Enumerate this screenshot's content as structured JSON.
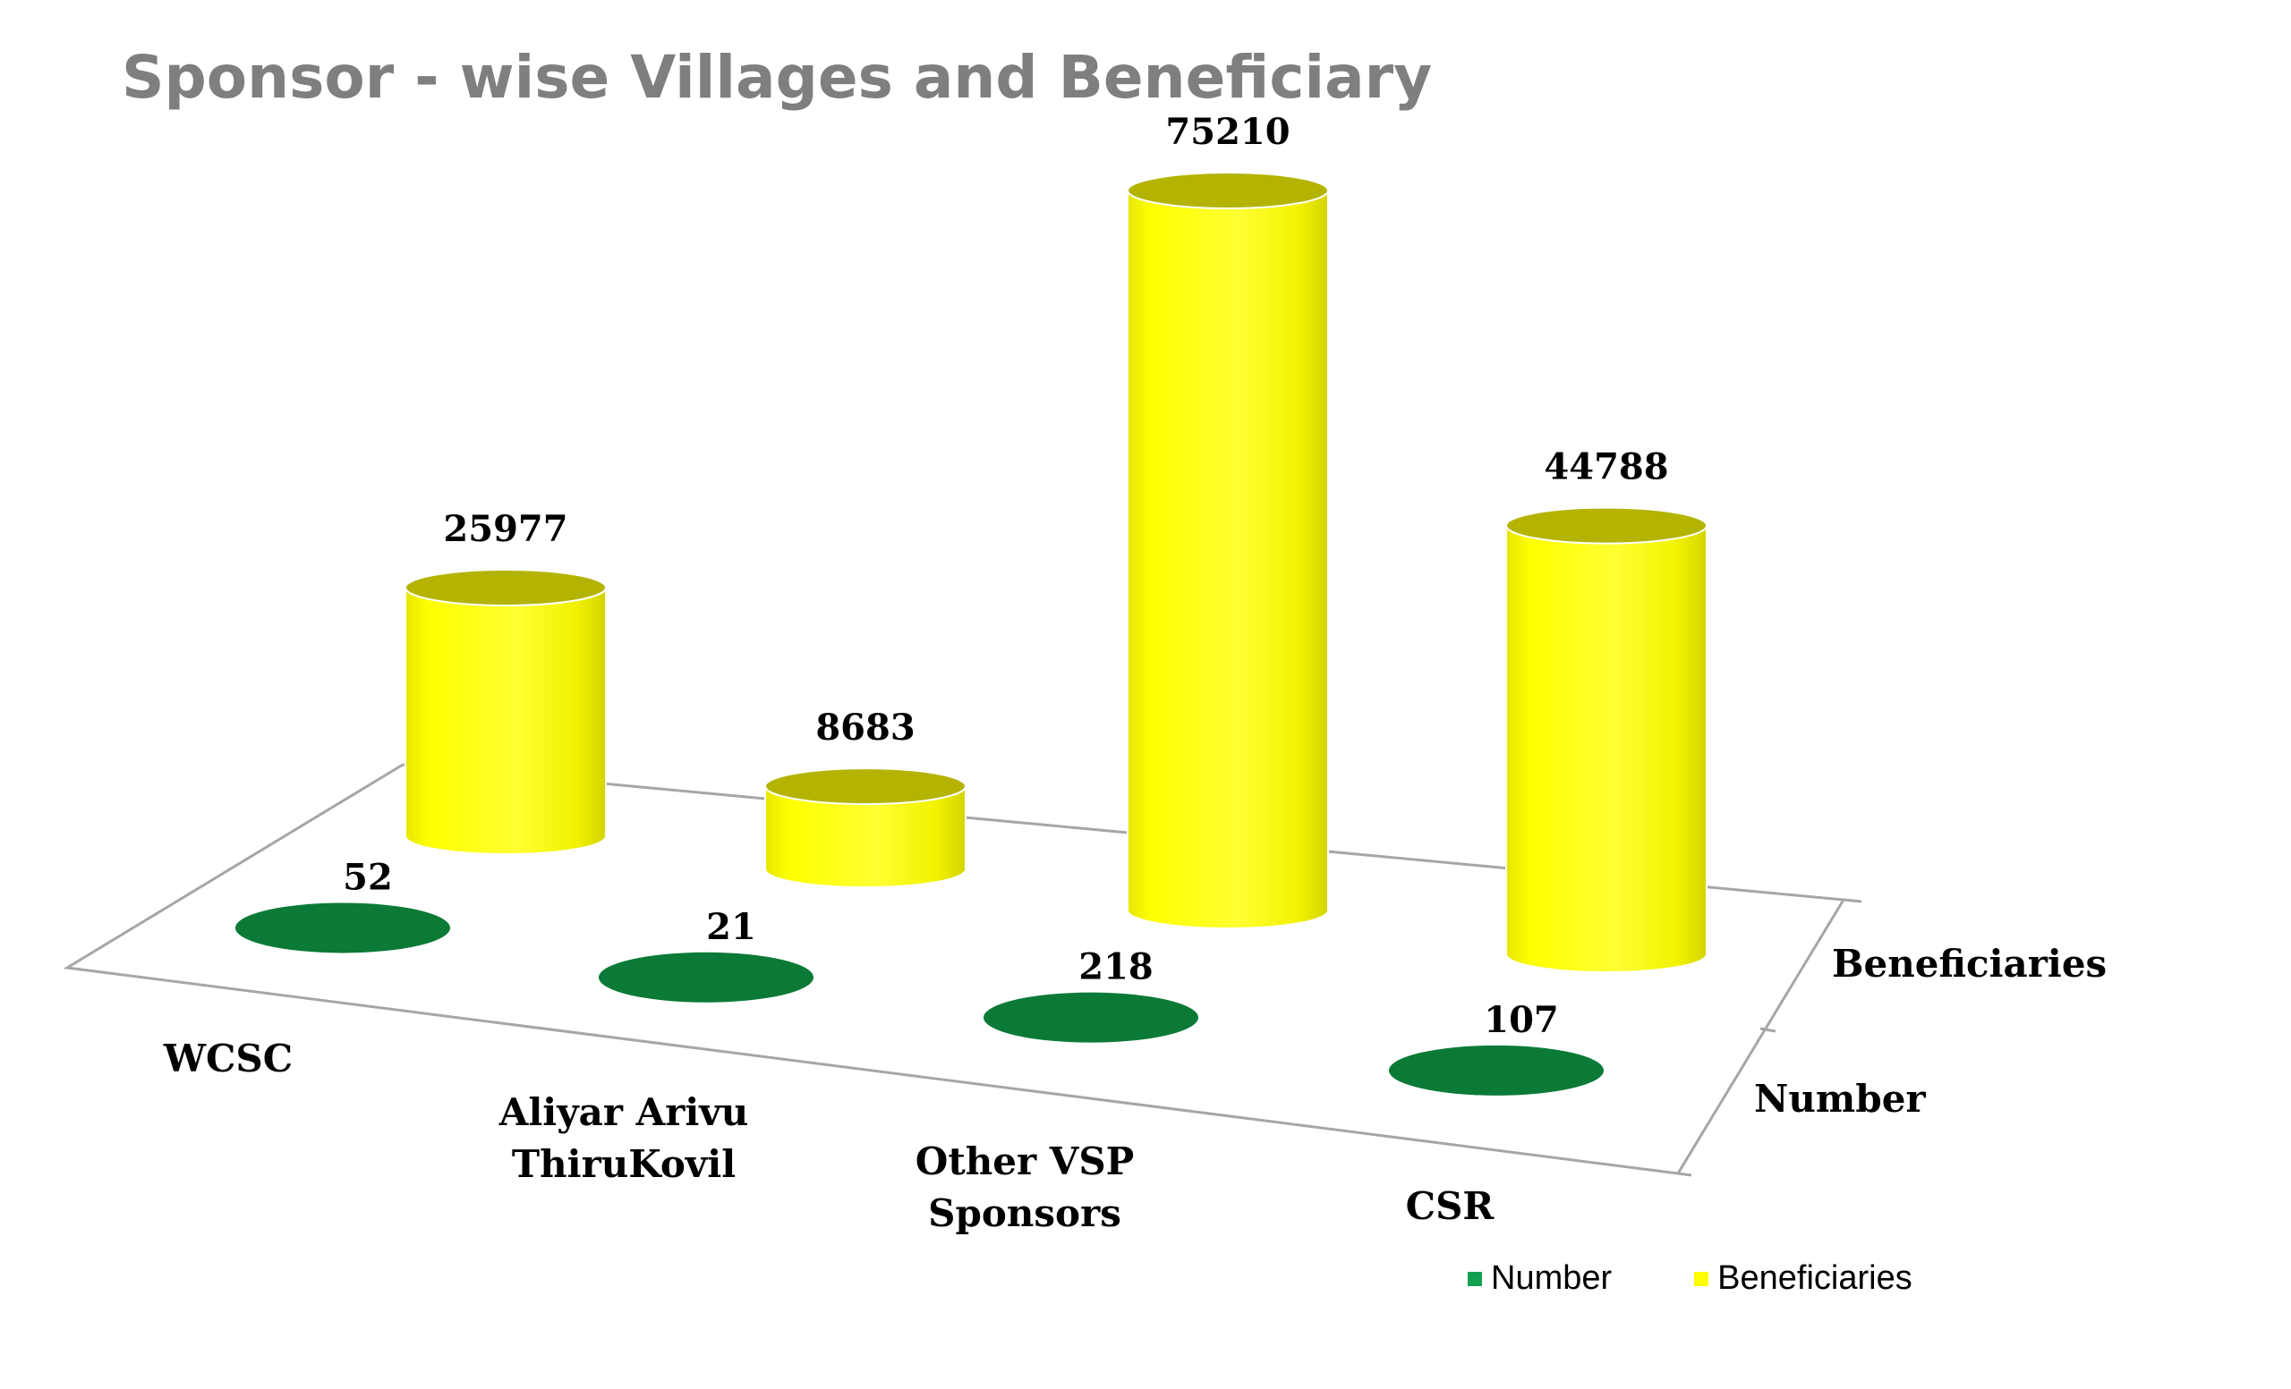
{
  "chart_data": {
    "type": "bar",
    "title": "Sponsor - wise Villages and Beneficiary",
    "categories": [
      "WCSC",
      "Aliyar Arivu ThiruKovil",
      "Other VSP Sponsors",
      "CSR"
    ],
    "series": [
      {
        "name": "Number",
        "values": [
          52,
          21,
          218,
          107
        ],
        "color": "#0b7a37",
        "legend_color": "#12a050"
      },
      {
        "name": "Beneficiaries",
        "values": [
          25977,
          8683,
          75210,
          44788
        ],
        "color": "#ffff00",
        "top_color": "#b3b300",
        "legend_color": "#ffff00"
      }
    ],
    "ylim": [
      0,
      75210
    ],
    "grid": false,
    "legend_position": "bottom-right",
    "mark_shape": "cylinder",
    "projection": "3d"
  }
}
